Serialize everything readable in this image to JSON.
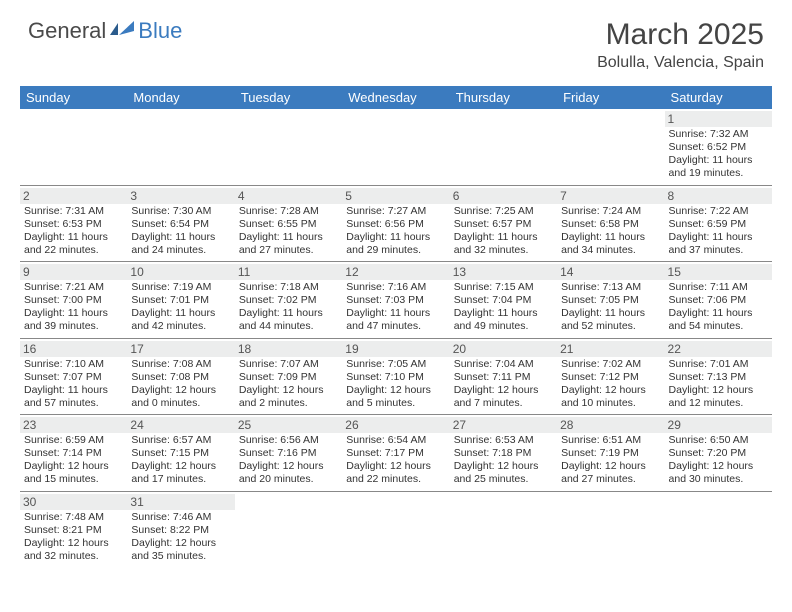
{
  "logo": {
    "general": "General",
    "blue": "Blue"
  },
  "title": "March 2025",
  "subtitle": "Bolulla, Valencia, Spain",
  "colors": {
    "header_bg": "#3b7bbf",
    "header_text": "#ffffff",
    "daynum_bg": "#eceded",
    "border": "#888888",
    "text": "#333333"
  },
  "weekdays": [
    "Sunday",
    "Monday",
    "Tuesday",
    "Wednesday",
    "Thursday",
    "Friday",
    "Saturday"
  ],
  "days": [
    {
      "n": "",
      "sunrise": "",
      "sunset": "",
      "daylight": ""
    },
    {
      "n": "",
      "sunrise": "",
      "sunset": "",
      "daylight": ""
    },
    {
      "n": "",
      "sunrise": "",
      "sunset": "",
      "daylight": ""
    },
    {
      "n": "",
      "sunrise": "",
      "sunset": "",
      "daylight": ""
    },
    {
      "n": "",
      "sunrise": "",
      "sunset": "",
      "daylight": ""
    },
    {
      "n": "",
      "sunrise": "",
      "sunset": "",
      "daylight": ""
    },
    {
      "n": "1",
      "sunrise": "Sunrise: 7:32 AM",
      "sunset": "Sunset: 6:52 PM",
      "daylight": "Daylight: 11 hours and 19 minutes."
    },
    {
      "n": "2",
      "sunrise": "Sunrise: 7:31 AM",
      "sunset": "Sunset: 6:53 PM",
      "daylight": "Daylight: 11 hours and 22 minutes."
    },
    {
      "n": "3",
      "sunrise": "Sunrise: 7:30 AM",
      "sunset": "Sunset: 6:54 PM",
      "daylight": "Daylight: 11 hours and 24 minutes."
    },
    {
      "n": "4",
      "sunrise": "Sunrise: 7:28 AM",
      "sunset": "Sunset: 6:55 PM",
      "daylight": "Daylight: 11 hours and 27 minutes."
    },
    {
      "n": "5",
      "sunrise": "Sunrise: 7:27 AM",
      "sunset": "Sunset: 6:56 PM",
      "daylight": "Daylight: 11 hours and 29 minutes."
    },
    {
      "n": "6",
      "sunrise": "Sunrise: 7:25 AM",
      "sunset": "Sunset: 6:57 PM",
      "daylight": "Daylight: 11 hours and 32 minutes."
    },
    {
      "n": "7",
      "sunrise": "Sunrise: 7:24 AM",
      "sunset": "Sunset: 6:58 PM",
      "daylight": "Daylight: 11 hours and 34 minutes."
    },
    {
      "n": "8",
      "sunrise": "Sunrise: 7:22 AM",
      "sunset": "Sunset: 6:59 PM",
      "daylight": "Daylight: 11 hours and 37 minutes."
    },
    {
      "n": "9",
      "sunrise": "Sunrise: 7:21 AM",
      "sunset": "Sunset: 7:00 PM",
      "daylight": "Daylight: 11 hours and 39 minutes."
    },
    {
      "n": "10",
      "sunrise": "Sunrise: 7:19 AM",
      "sunset": "Sunset: 7:01 PM",
      "daylight": "Daylight: 11 hours and 42 minutes."
    },
    {
      "n": "11",
      "sunrise": "Sunrise: 7:18 AM",
      "sunset": "Sunset: 7:02 PM",
      "daylight": "Daylight: 11 hours and 44 minutes."
    },
    {
      "n": "12",
      "sunrise": "Sunrise: 7:16 AM",
      "sunset": "Sunset: 7:03 PM",
      "daylight": "Daylight: 11 hours and 47 minutes."
    },
    {
      "n": "13",
      "sunrise": "Sunrise: 7:15 AM",
      "sunset": "Sunset: 7:04 PM",
      "daylight": "Daylight: 11 hours and 49 minutes."
    },
    {
      "n": "14",
      "sunrise": "Sunrise: 7:13 AM",
      "sunset": "Sunset: 7:05 PM",
      "daylight": "Daylight: 11 hours and 52 minutes."
    },
    {
      "n": "15",
      "sunrise": "Sunrise: 7:11 AM",
      "sunset": "Sunset: 7:06 PM",
      "daylight": "Daylight: 11 hours and 54 minutes."
    },
    {
      "n": "16",
      "sunrise": "Sunrise: 7:10 AM",
      "sunset": "Sunset: 7:07 PM",
      "daylight": "Daylight: 11 hours and 57 minutes."
    },
    {
      "n": "17",
      "sunrise": "Sunrise: 7:08 AM",
      "sunset": "Sunset: 7:08 PM",
      "daylight": "Daylight: 12 hours and 0 minutes."
    },
    {
      "n": "18",
      "sunrise": "Sunrise: 7:07 AM",
      "sunset": "Sunset: 7:09 PM",
      "daylight": "Daylight: 12 hours and 2 minutes."
    },
    {
      "n": "19",
      "sunrise": "Sunrise: 7:05 AM",
      "sunset": "Sunset: 7:10 PM",
      "daylight": "Daylight: 12 hours and 5 minutes."
    },
    {
      "n": "20",
      "sunrise": "Sunrise: 7:04 AM",
      "sunset": "Sunset: 7:11 PM",
      "daylight": "Daylight: 12 hours and 7 minutes."
    },
    {
      "n": "21",
      "sunrise": "Sunrise: 7:02 AM",
      "sunset": "Sunset: 7:12 PM",
      "daylight": "Daylight: 12 hours and 10 minutes."
    },
    {
      "n": "22",
      "sunrise": "Sunrise: 7:01 AM",
      "sunset": "Sunset: 7:13 PM",
      "daylight": "Daylight: 12 hours and 12 minutes."
    },
    {
      "n": "23",
      "sunrise": "Sunrise: 6:59 AM",
      "sunset": "Sunset: 7:14 PM",
      "daylight": "Daylight: 12 hours and 15 minutes."
    },
    {
      "n": "24",
      "sunrise": "Sunrise: 6:57 AM",
      "sunset": "Sunset: 7:15 PM",
      "daylight": "Daylight: 12 hours and 17 minutes."
    },
    {
      "n": "25",
      "sunrise": "Sunrise: 6:56 AM",
      "sunset": "Sunset: 7:16 PM",
      "daylight": "Daylight: 12 hours and 20 minutes."
    },
    {
      "n": "26",
      "sunrise": "Sunrise: 6:54 AM",
      "sunset": "Sunset: 7:17 PM",
      "daylight": "Daylight: 12 hours and 22 minutes."
    },
    {
      "n": "27",
      "sunrise": "Sunrise: 6:53 AM",
      "sunset": "Sunset: 7:18 PM",
      "daylight": "Daylight: 12 hours and 25 minutes."
    },
    {
      "n": "28",
      "sunrise": "Sunrise: 6:51 AM",
      "sunset": "Sunset: 7:19 PM",
      "daylight": "Daylight: 12 hours and 27 minutes."
    },
    {
      "n": "29",
      "sunrise": "Sunrise: 6:50 AM",
      "sunset": "Sunset: 7:20 PM",
      "daylight": "Daylight: 12 hours and 30 minutes."
    },
    {
      "n": "30",
      "sunrise": "Sunrise: 7:48 AM",
      "sunset": "Sunset: 8:21 PM",
      "daylight": "Daylight: 12 hours and 32 minutes."
    },
    {
      "n": "31",
      "sunrise": "Sunrise: 7:46 AM",
      "sunset": "Sunset: 8:22 PM",
      "daylight": "Daylight: 12 hours and 35 minutes."
    },
    {
      "n": "",
      "sunrise": "",
      "sunset": "",
      "daylight": ""
    },
    {
      "n": "",
      "sunrise": "",
      "sunset": "",
      "daylight": ""
    },
    {
      "n": "",
      "sunrise": "",
      "sunset": "",
      "daylight": ""
    },
    {
      "n": "",
      "sunrise": "",
      "sunset": "",
      "daylight": ""
    },
    {
      "n": "",
      "sunrise": "",
      "sunset": "",
      "daylight": ""
    }
  ]
}
